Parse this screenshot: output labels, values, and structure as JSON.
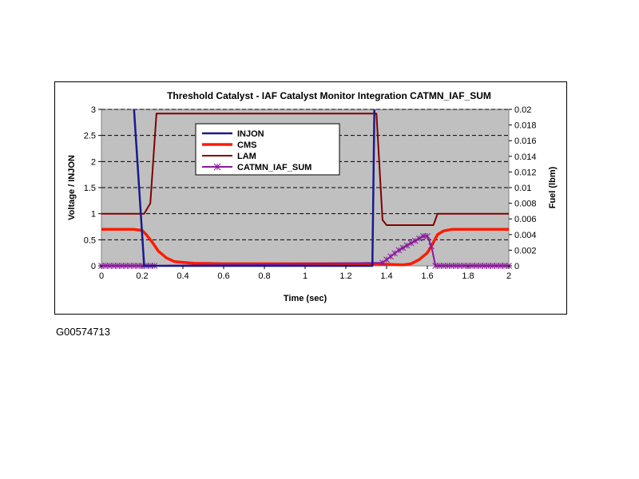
{
  "figure_id": "G00574713",
  "colors": {
    "plot_bg": "#c0c0c0",
    "injon": "#1a1a8c",
    "cms": "#ff1a00",
    "lam": "#800000",
    "catmn": "#8b1a9b"
  },
  "chart_data": {
    "type": "line",
    "title": "Threshold Catalyst - IAF Catalyst Monitor Integration CATMN_IAF_SUM",
    "xlabel": "Time (sec)",
    "ylabel": "Voltage / INJON",
    "y2label": "Fuel (lbm)",
    "xlim": [
      0,
      2
    ],
    "ylim": [
      0,
      3
    ],
    "y2lim": [
      0,
      0.02
    ],
    "x_ticks": [
      "0",
      "0.2",
      "0.4",
      "0.6",
      "0.8",
      "1",
      "1.2",
      "1.4",
      "1.6",
      "1.8",
      "2"
    ],
    "y_ticks": [
      "0",
      "0.5",
      "1",
      "1.5",
      "2",
      "2.5",
      "3"
    ],
    "y2_ticks": [
      "0",
      "0.002",
      "0.004",
      "0.006",
      "0.008",
      "0.01",
      "0.012",
      "0.014",
      "0.016",
      "0.018",
      "0.02"
    ],
    "grid": "horizontal dashed",
    "legend_position": "upper-center",
    "series": [
      {
        "name": "INJON",
        "axis": "left",
        "x": [
          0.16,
          0.21,
          0.21,
          1.33,
          1.33,
          1.34
        ],
        "y": [
          3.0,
          0.0,
          0.0,
          0.0,
          0.0,
          3.0
        ]
      },
      {
        "name": "CMS",
        "axis": "left",
        "x": [
          0,
          0.16,
          0.2,
          0.22,
          0.25,
          0.28,
          0.32,
          0.36,
          0.45,
          0.6,
          1.0,
          1.3,
          1.4,
          1.48,
          1.52,
          1.56,
          1.6,
          1.63,
          1.65,
          1.68,
          1.72,
          1.8,
          2.0
        ],
        "y": [
          0.7,
          0.7,
          0.68,
          0.6,
          0.45,
          0.28,
          0.15,
          0.08,
          0.05,
          0.04,
          0.04,
          0.04,
          0.03,
          0.02,
          0.04,
          0.12,
          0.25,
          0.45,
          0.6,
          0.67,
          0.7,
          0.7,
          0.7
        ]
      },
      {
        "name": "LAM",
        "axis": "left",
        "x": [
          0,
          0.21,
          0.24,
          0.27,
          1.34,
          1.35,
          1.38,
          1.4,
          1.6,
          1.63,
          1.65,
          2.0
        ],
        "y": [
          1.0,
          1.0,
          1.2,
          2.92,
          2.92,
          2.92,
          0.88,
          0.78,
          0.78,
          0.78,
          1.0,
          1.0
        ]
      },
      {
        "name": "CATMN_IAF_SUM",
        "axis": "right",
        "x": [
          0,
          0.02,
          0.04,
          0.06,
          0.08,
          0.1,
          0.12,
          0.14,
          0.16,
          0.18,
          0.2,
          0.22,
          0.24,
          0.26,
          1.38,
          1.4,
          1.42,
          1.44,
          1.46,
          1.48,
          1.5,
          1.52,
          1.54,
          1.56,
          1.58,
          1.6,
          1.62,
          1.64,
          1.66,
          1.68,
          1.7,
          1.72,
          1.74,
          1.76,
          1.78,
          1.8,
          1.82,
          1.84,
          1.86,
          1.88,
          1.9,
          1.92,
          1.94,
          1.96,
          1.98,
          2.0
        ],
        "y": [
          0,
          0,
          0,
          0,
          0,
          0,
          0,
          0,
          0,
          0,
          0,
          0,
          0,
          0,
          0.0004,
          0.0008,
          0.0012,
          0.0016,
          0.002,
          0.0023,
          0.0026,
          0.0029,
          0.0032,
          0.0035,
          0.0038,
          0.0038,
          0.0025,
          0,
          0,
          0,
          0,
          0,
          0,
          0,
          0,
          0,
          0,
          0,
          0,
          0,
          0,
          0,
          0,
          0,
          0,
          0
        ]
      }
    ]
  }
}
